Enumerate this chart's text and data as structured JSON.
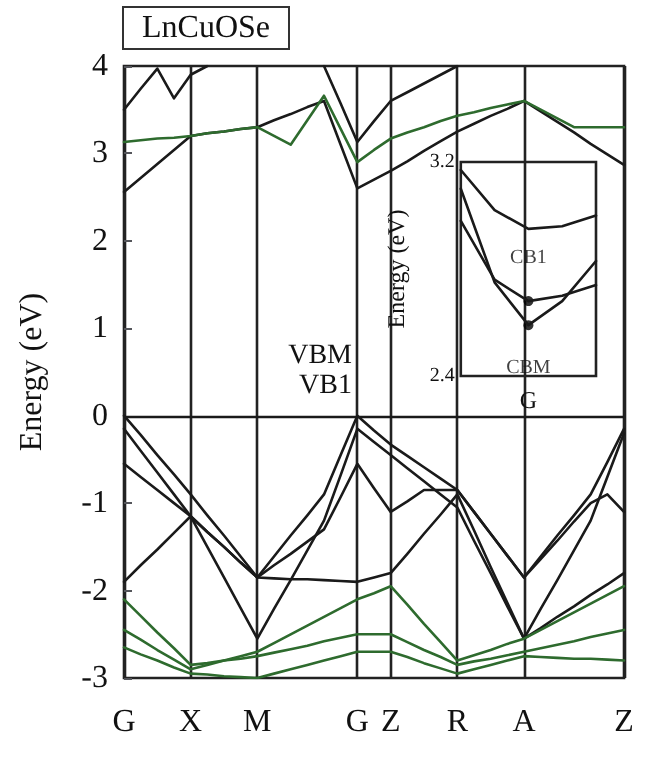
{
  "chart_data": [
    {
      "type": "line",
      "title": "LnCuOSe",
      "ylabel": "Energy (eV)",
      "categories": [
        "G",
        null,
        null,
        null,
        "X",
        null,
        null,
        null,
        "M",
        null,
        null,
        null,
        null,
        null,
        "G",
        null,
        "Z",
        null,
        null,
        null,
        "R",
        null,
        null,
        null,
        "A",
        null,
        null,
        null,
        null,
        null,
        "Z"
      ],
      "ylim": [
        -3,
        4
      ],
      "yticks": [
        -3,
        -2,
        -1,
        0,
        1,
        2,
        3,
        4
      ],
      "grid": "x",
      "marker": "none",
      "line_style": "solid",
      "ref_lines": [
        {
          "axis": "y",
          "value": 0,
          "color": "#1a1a1a"
        }
      ],
      "annotations": [
        "VBM",
        "VB1"
      ],
      "series": [
        {
          "color": "#1a1a1a",
          "values": [
            0,
            -0.22,
            -0.45,
            -0.67,
            -0.9,
            -1.14,
            -1.37,
            -1.61,
            -1.85,
            -1.61,
            -1.37,
            -1.14,
            -0.9,
            -0.45,
            0,
            -0.17,
            -0.33,
            -0.46,
            -0.59,
            -0.72,
            -0.85,
            -1.1,
            -1.35,
            -1.6,
            -1.85,
            -1.61,
            -1.37,
            -1.14,
            -0.9,
            -0.53,
            -0.15
          ]
        },
        {
          "color": "#1a1a1a",
          "values": [
            -0.15,
            -0.4,
            -0.65,
            -0.9,
            -1.15,
            -1.5,
            -1.85,
            -2.2,
            -2.55,
            -2.21,
            -1.88,
            -1.54,
            -1.2,
            -0.68,
            -0.15,
            -0.3,
            -0.45,
            -0.6,
            -0.75,
            -0.9,
            -1.05,
            -1.43,
            -1.8,
            -2.18,
            -2.55,
            -2.21,
            -1.88,
            -1.54,
            -1.2,
            -0.7,
            -0.2
          ]
        },
        {
          "color": "#1a1a1a",
          "values": [
            -0.55,
            -0.7,
            -0.85,
            -1.0,
            -1.15,
            -1.33,
            -1.5,
            -1.68,
            -1.85,
            -1.71,
            -1.58,
            -1.44,
            -1.3,
            -0.93,
            -0.55,
            -0.83,
            -1.1,
            -0.98,
            -0.85,
            -0.85,
            -0.85,
            -1.1,
            -1.35,
            -1.6,
            -1.85,
            -1.64,
            -1.43,
            -1.21,
            -1.0,
            -0.9,
            -1.1
          ]
        },
        {
          "color": "#1a1a1a",
          "values": [
            -1.9,
            -1.71,
            -1.53,
            -1.34,
            -1.15,
            -1.33,
            -1.5,
            -1.68,
            -1.85,
            -1.86,
            -1.87,
            -1.87,
            -1.88,
            -1.89,
            -1.9,
            -1.85,
            -1.8,
            -1.58,
            -1.35,
            -1.13,
            -0.9,
            -1.31,
            -1.73,
            -2.14,
            -2.55,
            -2.43,
            -2.3,
            -2.18,
            -2.05,
            -1.93,
            -1.8
          ]
        },
        {
          "color": "#2e6b2e",
          "values": [
            -2.1,
            -2.29,
            -2.48,
            -2.66,
            -2.85,
            -2.83,
            -2.8,
            -2.78,
            -2.75,
            -2.71,
            -2.67,
            -2.63,
            -2.58,
            -2.54,
            -2.5,
            -2.5,
            -2.5,
            -2.59,
            -2.68,
            -2.76,
            -2.85,
            -2.81,
            -2.78,
            -2.74,
            -2.7,
            -2.66,
            -2.62,
            -2.58,
            -2.53,
            -2.49,
            -2.45
          ]
        },
        {
          "color": "#2e6b2e",
          "values": [
            -2.45,
            -2.56,
            -2.68,
            -2.79,
            -2.9,
            -2.85,
            -2.8,
            -2.75,
            -2.7,
            -2.6,
            -2.5,
            -2.4,
            -2.3,
            -2.2,
            -2.1,
            -2.03,
            -1.95,
            -2.16,
            -2.38,
            -2.59,
            -2.8,
            -2.74,
            -2.68,
            -2.61,
            -2.55,
            -2.45,
            -2.35,
            -2.25,
            -2.15,
            -2.05,
            -1.95
          ]
        },
        {
          "color": "#2e6b2e",
          "values": [
            -2.65,
            -2.73,
            -2.8,
            -2.88,
            -2.95,
            -2.96,
            -2.98,
            -2.99,
            -3,
            -2.95,
            -2.9,
            -2.85,
            -2.8,
            -2.75,
            -2.7,
            -2.7,
            -2.7,
            -2.76,
            -2.83,
            -2.89,
            -2.95,
            -2.9,
            -2.85,
            -2.8,
            -2.75,
            -2.76,
            -2.77,
            -2.78,
            -2.78,
            -2.79,
            -2.8
          ]
        },
        {
          "color": "#1a1a1a",
          "values": [
            2.56,
            2.72,
            2.88,
            3.04,
            3.2,
            3.23,
            3.25,
            3.28,
            3.3,
            3.38,
            3.45,
            3.53,
            3.6,
            3.1,
            2.6,
            2.7,
            2.8,
            2.91,
            3.03,
            3.14,
            3.25,
            3.34,
            3.43,
            3.51,
            3.6,
            3.48,
            3.36,
            3.24,
            3.11,
            2.99,
            2.87
          ]
        },
        {
          "color": "#2e6b2e",
          "values": [
            3.13,
            3.15,
            3.17,
            3.18,
            3.2,
            3.23,
            3.25,
            3.28,
            3.3,
            3.2,
            3.1,
            3.38,
            3.66,
            3.28,
            2.9,
            3.04,
            3.17,
            3.24,
            3.3,
            3.37,
            3.43,
            3.47,
            3.52,
            3.56,
            3.6,
            3.5,
            3.4,
            3.3,
            3.3,
            3.3,
            3.3
          ]
        },
        {
          "color": "#1a1a1a",
          "values": [
            3.5,
            3.74,
            3.97,
            3.63,
            3.9,
            4,
            null,
            null,
            null,
            null,
            null,
            null,
            4,
            3.57,
            3.13,
            3.37,
            3.6,
            3.7,
            3.8,
            3.9,
            4,
            null,
            null,
            null,
            null,
            null,
            null,
            null,
            null,
            null,
            null
          ]
        }
      ]
    },
    {
      "type": "line",
      "ylabel": "Energy (eV)",
      "categories": [
        null,
        null,
        "G",
        null,
        null
      ],
      "ylim": [
        2.4,
        3.2
      ],
      "yticks": [
        2.4,
        3.2
      ],
      "marker": "none",
      "line_style": "solid",
      "annotations": [
        {
          "text": "CB1",
          "x": "G",
          "y": 2.68
        },
        {
          "text": "CBM",
          "x": "G",
          "y": 2.59
        }
      ],
      "series": [
        {
          "color": "#1a1a1a",
          "values": [
            3.17,
            3.02,
            2.95,
            2.96,
            3.0
          ]
        },
        {
          "color": "#1a1a1a",
          "values": [
            2.98,
            2.76,
            2.68,
            2.7,
            2.74
          ]
        },
        {
          "color": "#1a1a1a",
          "values": [
            3.1,
            2.75,
            2.59,
            2.68,
            2.83
          ]
        }
      ]
    }
  ]
}
